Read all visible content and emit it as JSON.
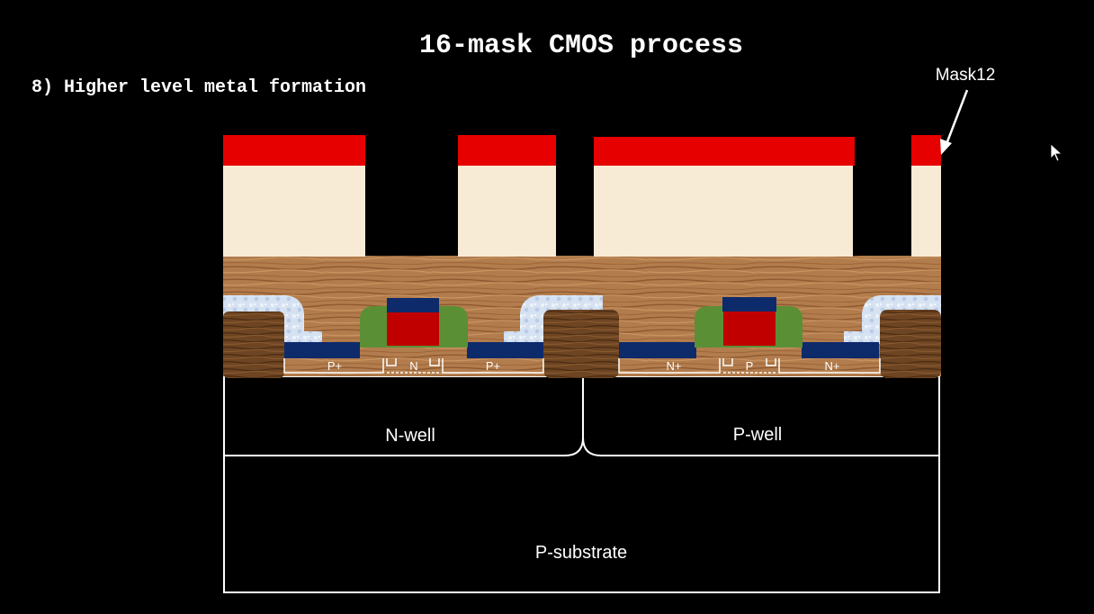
{
  "slide": {
    "title": "16-mask CMOS process",
    "step": "8) Higher level metal formation"
  },
  "diagram": {
    "mask_label": "Mask12",
    "regions": {
      "nwell": "N-well",
      "pwell": "P-well",
      "substrate": "P-substrate"
    },
    "diffusions": {
      "pmos_left": "P+",
      "pmos_channel": "N",
      "pmos_right": "P+",
      "nmos_left": "N+",
      "nmos_channel": "P",
      "nmos_right": "N+"
    },
    "colors": {
      "mask": "#e60000",
      "metal": "#f7ebd6",
      "oxide": "#b07a4a",
      "gate_poly": "#c00000",
      "spacer": "#5b8f35",
      "silicide": "#0d2a6b",
      "sti": "#6b4420"
    }
  }
}
